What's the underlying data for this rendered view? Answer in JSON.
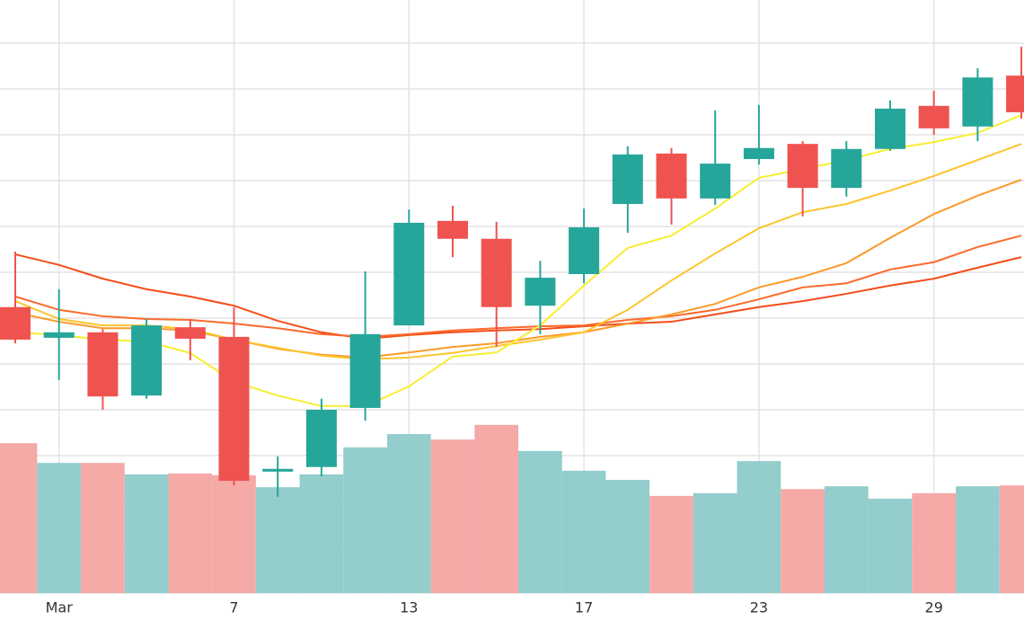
{
  "chart_data": {
    "type": "candlestick",
    "categories": [
      null,
      "Mar",
      null,
      null,
      null,
      "7",
      null,
      null,
      null,
      "13",
      null,
      null,
      null,
      "17",
      null,
      null,
      null,
      "23",
      null,
      null,
      null,
      "29",
      null,
      null
    ],
    "open": [
      62.4,
      55.7,
      56.9,
      43.1,
      58.0,
      55.9,
      26.5,
      27.5,
      40.4,
      58.4,
      81.2,
      77.3,
      62.7,
      69.6,
      84.9,
      95.9,
      86.1,
      94.7,
      98.0,
      88.4,
      96.9,
      106.3,
      101.8,
      112.9
    ],
    "high": [
      74.5,
      66.3,
      57.6,
      59.8,
      59.8,
      62.4,
      29.8,
      42.4,
      70.2,
      83.7,
      84.5,
      81.0,
      72.5,
      83.9,
      97.5,
      97.1,
      105.3,
      106.5,
      98.6,
      98.6,
      107.5,
      109.6,
      114.5,
      119.2
    ],
    "low": [
      54.5,
      46.5,
      40.0,
      42.4,
      50.8,
      23.5,
      21.0,
      25.5,
      37.6,
      58.4,
      73.3,
      53.7,
      56.5,
      67.6,
      78.6,
      80.4,
      84.7,
      93.5,
      82.2,
      86.5,
      96.5,
      100.0,
      98.6,
      103.5
    ],
    "close": [
      55.3,
      56.9,
      42.9,
      58.4,
      55.5,
      24.5,
      27.1,
      40.0,
      56.5,
      80.8,
      77.3,
      62.4,
      68.8,
      79.8,
      95.7,
      86.1,
      93.7,
      97.1,
      88.4,
      96.9,
      105.7,
      101.4,
      112.5,
      104.9
    ],
    "volume": [
      32.7,
      28.4,
      28.4,
      25.9,
      26.1,
      25.7,
      23.1,
      25.9,
      31.8,
      34.7,
      33.5,
      36.7,
      31.0,
      26.7,
      24.7,
      21.2,
      21.8,
      28.8,
      22.7,
      23.3,
      20.6,
      21.8,
      23.3,
      23.5
    ],
    "up_color": "#26a69a",
    "down_color": "#ef5350",
    "volume_up_color": "#93cdcc",
    "volume_down_color": "#f5aaa8",
    "lines": [
      {
        "color": "#f44d1a",
        "values": [
          73.9,
          71.6,
          68.6,
          66.3,
          64.7,
          62.7,
          59.4,
          56.9,
          55.5,
          56.3,
          56.9,
          57.3,
          57.6,
          58.2,
          58.8,
          59.2,
          60.8,
          62.4,
          63.7,
          65.3,
          67.1,
          68.6,
          71.0,
          73.3
        ]
      },
      {
        "color": "#fb6a2c",
        "values": [
          64.7,
          61.8,
          60.4,
          59.8,
          59.6,
          58.8,
          57.8,
          56.5,
          55.9,
          56.5,
          57.3,
          57.8,
          58.2,
          58.4,
          59.6,
          60.4,
          61.8,
          64.1,
          66.7,
          67.6,
          70.6,
          72.2,
          75.5,
          78.0
        ]
      },
      {
        "color": "#fb9a2a",
        "values": [
          61.2,
          59.2,
          57.8,
          57.8,
          57.3,
          55.3,
          53.3,
          52.0,
          51.4,
          52.5,
          53.7,
          54.5,
          55.9,
          56.9,
          58.8,
          60.8,
          63.1,
          66.7,
          69.0,
          72.0,
          77.5,
          82.7,
          86.7,
          90.2
        ]
      },
      {
        "color": "#fcc52d",
        "values": [
          63.7,
          59.8,
          58.4,
          58.4,
          57.6,
          55.3,
          53.5,
          51.8,
          51.0,
          51.4,
          52.4,
          53.9,
          55.3,
          56.9,
          61.8,
          68.2,
          74.1,
          79.6,
          83.1,
          84.9,
          87.8,
          91.0,
          94.5,
          98.0
        ]
      },
      {
        "color": "#f7ee32",
        "values": [
          56.9,
          56.3,
          55.3,
          54.9,
          52.4,
          46.1,
          43.1,
          40.8,
          40.8,
          45.1,
          51.6,
          52.5,
          58.4,
          67.1,
          75.3,
          78.0,
          83.9,
          90.6,
          92.5,
          94.5,
          96.9,
          98.4,
          100.4,
          104.3
        ]
      }
    ],
    "ylim": [
      -9.8,
      129.4
    ],
    "yticks": [
      0,
      10,
      20,
      30,
      40,
      50,
      60,
      70,
      80,
      90,
      100,
      110,
      120
    ],
    "grid": true
  }
}
